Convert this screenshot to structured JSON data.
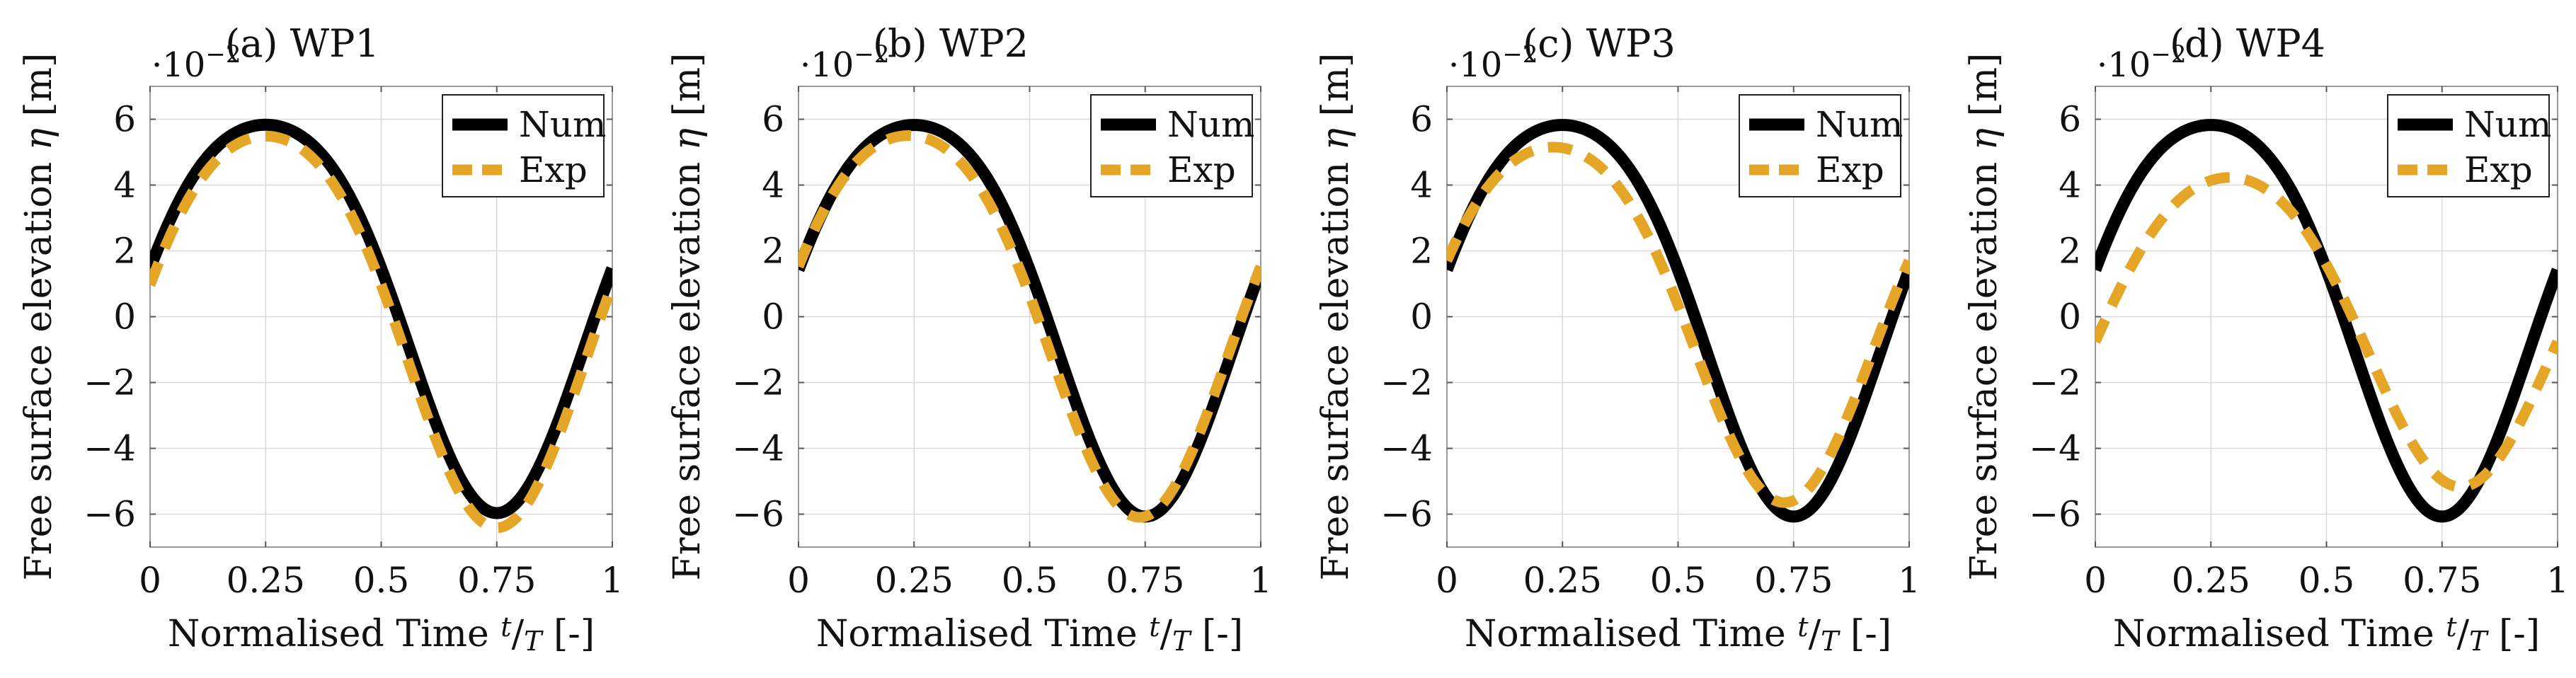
{
  "figure": {
    "shared_ylabel": "Free surface elevation η [m]",
    "shared_xlabel": "Normalised Time t/T [-]",
    "xlabel_prefix": "Normalised Time ",
    "xlabel_num": "t",
    "xlabel_den": "T",
    "xlabel_suffix": " [-]",
    "ylabel_prefix": "Free surface elevation ",
    "ylabel_symbol": "η",
    "ylabel_suffix": " [m]",
    "scale_prefix": "·10",
    "scale_exponent": "−2",
    "colors": {
      "num": "#000000",
      "exp": "#E5A526",
      "grid": "#d9d9d9",
      "frame": "#9a9a9a"
    }
  },
  "chart_data": [
    {
      "type": "line",
      "title": "(a) WP1",
      "xlabel": "Normalised Time t/T [-]",
      "ylabel": "Free surface elevation η [m]",
      "y_scale_note": "·10^-2",
      "xlim": [
        0,
        1
      ],
      "ylim": [
        -7,
        7
      ],
      "xticks": [
        0,
        0.25,
        0.5,
        0.75,
        1
      ],
      "xtick_labels": [
        "0",
        "0.25",
        "0.5",
        "0.75",
        "1"
      ],
      "yticks": [
        -6,
        -4,
        -2,
        0,
        2,
        4,
        6
      ],
      "ytick_labels": [
        "−6",
        "−4",
        "−2",
        "0",
        "2",
        "4",
        "6"
      ],
      "grid": true,
      "legend_position": "top-right",
      "series": [
        {
          "name": "Num",
          "style": "solid",
          "color": "#000000",
          "amplitude": 5.9,
          "offset": 0.7,
          "shift": 0.0,
          "skew": -0.13
        },
        {
          "name": "Exp",
          "style": "dashed",
          "color": "#E5A526",
          "amplitude": 5.95,
          "offset": 0.25,
          "shift": 0.0,
          "skew": -0.12
        }
      ]
    },
    {
      "type": "line",
      "title": "(b) WP2",
      "xlabel": "Normalised Time t/T [-]",
      "ylabel": "Free surface elevation η [m]",
      "y_scale_note": "·10^-2",
      "xlim": [
        0,
        1
      ],
      "ylim": [
        -7,
        7
      ],
      "xticks": [
        0,
        0.25,
        0.5,
        0.75,
        1
      ],
      "xtick_labels": [
        "0",
        "0.25",
        "0.5",
        "0.75",
        "1"
      ],
      "yticks": [
        -6,
        -4,
        -2,
        0,
        2,
        4,
        6
      ],
      "ytick_labels": [
        "−6",
        "−4",
        "−2",
        "0",
        "2",
        "4",
        "6"
      ],
      "grid": true,
      "legend_position": "top-right",
      "series": [
        {
          "name": "Num",
          "style": "solid",
          "color": "#000000",
          "amplitude": 5.95,
          "offset": 0.65,
          "shift": 0.0,
          "skew": -0.13
        },
        {
          "name": "Exp",
          "style": "dashed",
          "color": "#E5A526",
          "amplitude": 5.8,
          "offset": 0.4,
          "shift": -0.012,
          "skew": -0.12
        }
      ]
    },
    {
      "type": "line",
      "title": "(c) WP3",
      "xlabel": "Normalised Time t/T [-]",
      "ylabel": "Free surface elevation η [m]",
      "y_scale_note": "·10^-2",
      "xlim": [
        0,
        1
      ],
      "ylim": [
        -7,
        7
      ],
      "xticks": [
        0,
        0.25,
        0.5,
        0.75,
        1
      ],
      "xtick_labels": [
        "0",
        "0.25",
        "0.5",
        "0.75",
        "1"
      ],
      "yticks": [
        -6,
        -4,
        -2,
        0,
        2,
        4,
        6
      ],
      "ytick_labels": [
        "−6",
        "−4",
        "−2",
        "0",
        "2",
        "4",
        "6"
      ],
      "grid": true,
      "legend_position": "top-right",
      "series": [
        {
          "name": "Num",
          "style": "solid",
          "color": "#000000",
          "amplitude": 5.95,
          "offset": 0.65,
          "shift": 0.0,
          "skew": -0.13
        },
        {
          "name": "Exp",
          "style": "dashed",
          "color": "#E5A526",
          "amplitude": 5.4,
          "offset": 0.4,
          "shift": -0.02,
          "skew": -0.12
        }
      ]
    },
    {
      "type": "line",
      "title": "(d) WP4",
      "xlabel": "Normalised Time t/T [-]",
      "ylabel": "Free surface elevation η [m]",
      "y_scale_note": "·10^-2",
      "xlim": [
        0,
        1
      ],
      "ylim": [
        -7,
        7
      ],
      "xticks": [
        0,
        0.25,
        0.5,
        0.75,
        1
      ],
      "xtick_labels": [
        "0",
        "0.25",
        "0.5",
        "0.75",
        "1"
      ],
      "yticks": [
        -6,
        -4,
        -2,
        0,
        2,
        4,
        6
      ],
      "ytick_labels": [
        "−6",
        "−4",
        "−2",
        "0",
        "2",
        "4",
        "6"
      ],
      "grid": true,
      "legend_position": "top-right",
      "series": [
        {
          "name": "Num",
          "style": "solid",
          "color": "#000000",
          "amplitude": 5.95,
          "offset": 0.65,
          "shift": 0.0,
          "skew": -0.13
        },
        {
          "name": "Exp",
          "style": "dashed",
          "color": "#E5A526",
          "amplitude": 4.7,
          "offset": 0.0,
          "shift": 0.04,
          "skew": -0.1
        }
      ]
    }
  ]
}
